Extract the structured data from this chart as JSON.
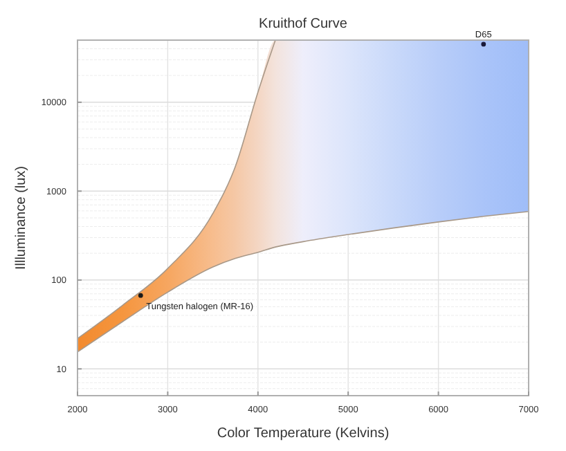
{
  "chart_data": {
    "type": "line",
    "title": "Kruithof Curve",
    "xlabel": "Color Temperature (Kelvins)",
    "ylabel": "Illluminance (lux)",
    "log": "y",
    "grid": true,
    "xlim": [
      2000,
      7000
    ],
    "xticks": [
      2000,
      3000,
      4000,
      5000,
      6000,
      7000
    ],
    "ylim": [
      5,
      50000
    ],
    "yticks": [
      10,
      100,
      1000,
      10000
    ],
    "series": [
      {
        "x": [
          2000,
          2500,
          3000,
          3500,
          3750,
          4000,
          4193,
          4500,
          5000,
          5500,
          6000,
          6500,
          7000
        ],
        "values": [
          15.5,
          34,
          73,
          140,
          175,
          205,
          235,
          270,
          325,
          385,
          450,
          520,
          590
        ],
        "color": "#a89888",
        "lower": [
          15.5,
          34,
          73,
          140,
          175,
          205,
          235,
          270,
          325,
          385,
          450,
          520,
          590
        ],
        "upper": [
          22,
          52,
          135,
          560,
          1900,
          13000,
          50000,
          50000,
          50000,
          50000,
          50000,
          50000,
          50000
        ],
        "colors": [
          "#f28a2e",
          "#f5963f",
          "#f6a660",
          "#f7bd8e",
          "#f5c8a6",
          "#f4d6c3",
          "#f3e3dc",
          "#eeeefb",
          "#dce5fb",
          "#c9d9fa",
          "#b8cdf9",
          "#aac4f9",
          "#9fbdf8"
        ]
      },
      {
        "x": [
          2000,
          2500,
          3000,
          3500,
          3750,
          4000,
          4193
        ],
        "values": [
          22,
          52,
          135,
          560,
          1900,
          13000,
          50000
        ],
        "color": "#a89888"
      },
      {
        "type": "scatter",
        "name": "D65",
        "x": [
          6500
        ],
        "values": [
          45000
        ],
        "color": "#1a1a3a",
        "marker": "circle"
      },
      {
        "type": "scatter",
        "name": "Tungsten halogen (MR-16)",
        "x": [
          2700
        ],
        "values": [
          67
        ],
        "color": "#1a1a1a",
        "marker": "circle"
      }
    ]
  }
}
